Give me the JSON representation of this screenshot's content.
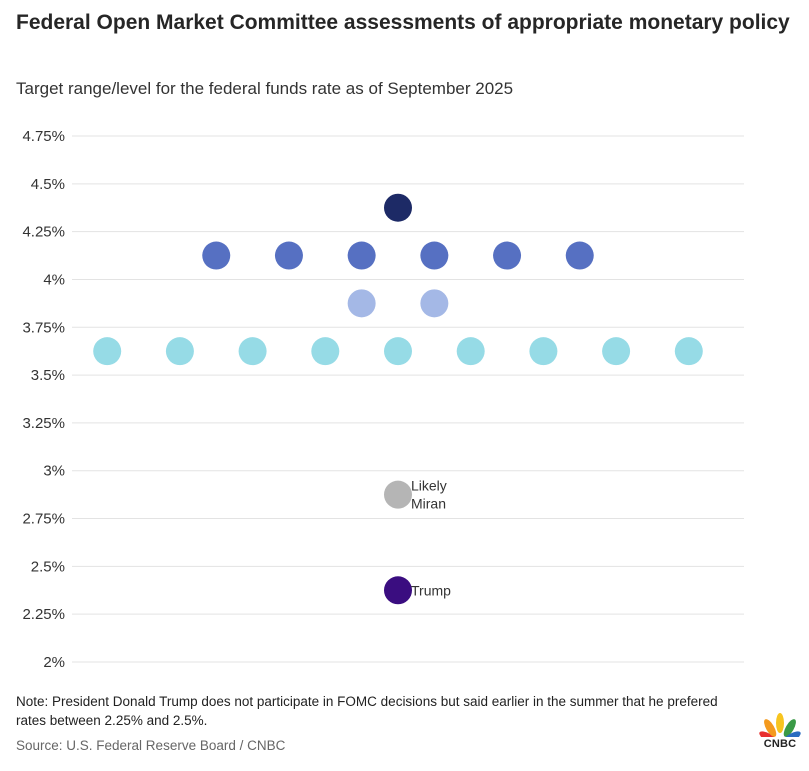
{
  "header": {
    "title": "Federal Open Market Committee assessments of appropriate monetary policy",
    "subtitle": "Target range/level for the federal funds rate as of September 2025"
  },
  "chart_data": {
    "type": "scatter",
    "title": "Federal Open Market Committee assessments of appropriate monetary policy",
    "subtitle": "Target range/level for the federal funds rate as of September 2025",
    "xlabel": "",
    "ylabel": "",
    "ylim": [
      2.0,
      4.75
    ],
    "y_ticks": [
      {
        "value": 4.75,
        "label": "4.75%"
      },
      {
        "value": 4.5,
        "label": "4.5%"
      },
      {
        "value": 4.25,
        "label": "4.25%"
      },
      {
        "value": 4.0,
        "label": "4%"
      },
      {
        "value": 3.75,
        "label": "3.75%"
      },
      {
        "value": 3.5,
        "label": "3.5%"
      },
      {
        "value": 3.25,
        "label": "3.25%"
      },
      {
        "value": 3.0,
        "label": "3%"
      },
      {
        "value": 2.75,
        "label": "2.75%"
      },
      {
        "value": 2.5,
        "label": "2.5%"
      },
      {
        "value": 2.25,
        "label": "2.25%"
      },
      {
        "value": 2.0,
        "label": "2%"
      }
    ],
    "grid": true,
    "series": [
      {
        "name": "4.375% assessment",
        "value": 4.375,
        "count": 1,
        "color": "#1d2a66"
      },
      {
        "name": "4.125% assessments",
        "value": 4.125,
        "count": 6,
        "color": "#5670c2"
      },
      {
        "name": "3.875% assessments",
        "value": 3.875,
        "count": 2,
        "color": "#a4b8e6"
      },
      {
        "name": "3.625% assessments",
        "value": 3.625,
        "count": 9,
        "color": "#96dbe6"
      },
      {
        "name": "Likely Miran",
        "value": 2.875,
        "count": 1,
        "color": "#b5b5b5"
      },
      {
        "name": "Trump",
        "value": 2.375,
        "count": 1,
        "color": "#3a0d80"
      }
    ],
    "annotations": [
      {
        "series": "Likely Miran",
        "lines": [
          "Likely",
          "Miran"
        ]
      },
      {
        "series": "Trump",
        "lines": [
          "Trump"
        ]
      }
    ]
  },
  "footer": {
    "note": "Note: President Donald Trump does not participate in FOMC decisions but said earlier in the summer that he prefered rates between 2.25% and 2.5%.",
    "source": "Source: U.S. Federal Reserve Board / CNBC",
    "logo_text": "CNBC"
  }
}
